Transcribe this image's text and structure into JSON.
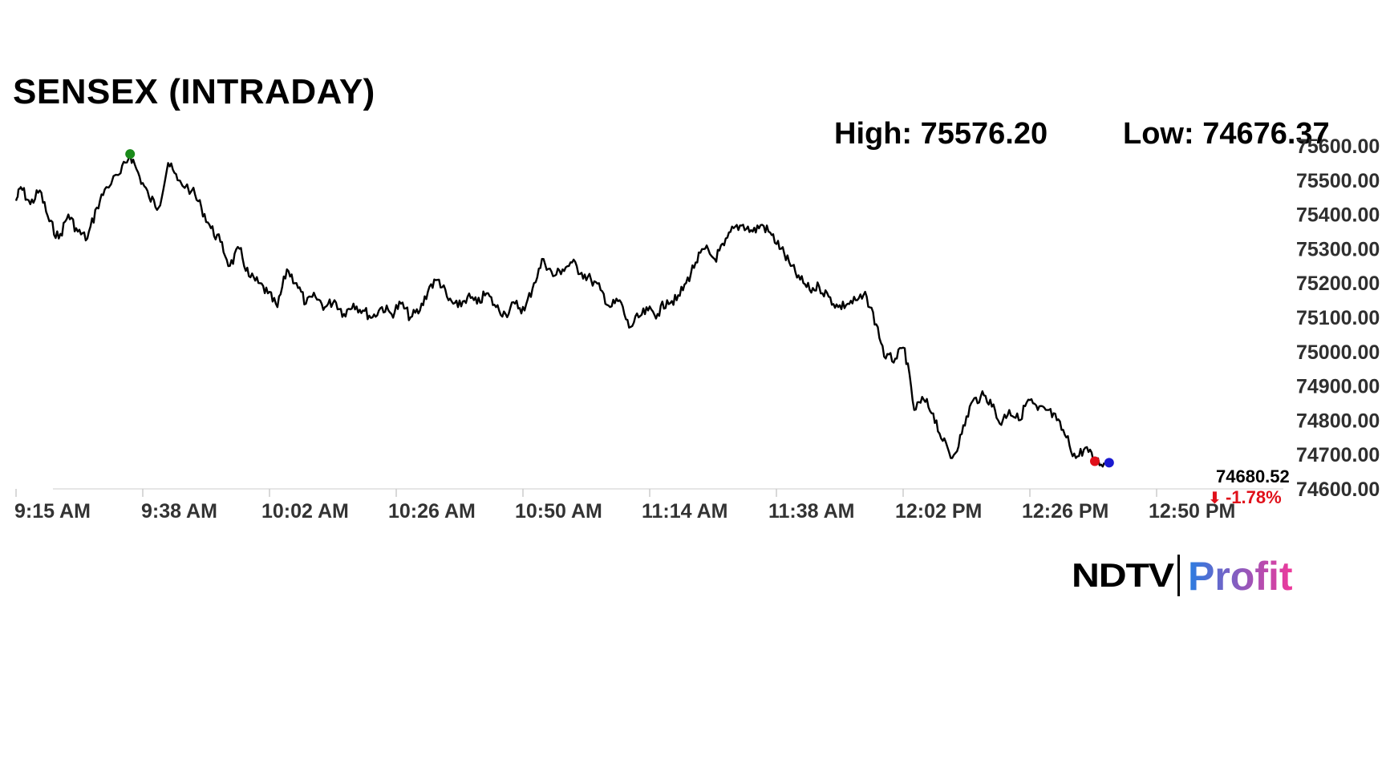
{
  "title": "SENSEX (INTRADAY)",
  "high_label": "High: 75576.20",
  "low_label": "Low: 74676.37",
  "last_value": "74680.52",
  "change_text": "-1.78%",
  "brand": {
    "ndtv": "NDTV",
    "profit": "Profit"
  },
  "colors": {
    "line": "#000000",
    "high_marker": "#1a8a1a",
    "last_marker": "#e0101a",
    "end_marker": "#1a1ad0",
    "change": "#e0101a",
    "profit_start": "#2a7de1",
    "profit_end": "#f0389a"
  },
  "chart_data": {
    "type": "line",
    "title": "SENSEX (INTRADAY)",
    "xlabel": "",
    "ylabel": "",
    "ylim": [
      74600,
      75600
    ],
    "y_ticks": [
      "75600.00",
      "75500.00",
      "75400.00",
      "75300.00",
      "75200.00",
      "75100.00",
      "75000.00",
      "74900.00",
      "74800.00",
      "74700.00",
      "74600.00"
    ],
    "x_ticks": [
      "9:15 AM",
      "9:38 AM",
      "10:02 AM",
      "10:26 AM",
      "10:50 AM",
      "11:14 AM",
      "11:38 AM",
      "12:02 PM",
      "12:26 PM",
      "12:50 PM"
    ],
    "series": [
      {
        "points": [
          [
            "9:15",
            75440
          ],
          [
            "9:16",
            75480
          ],
          [
            "9:18",
            75430
          ],
          [
            "9:20",
            75470
          ],
          [
            "9:22",
            75380
          ],
          [
            "9:24",
            75330
          ],
          [
            "9:26",
            75400
          ],
          [
            "9:28",
            75350
          ],
          [
            "9:30",
            75330
          ],
          [
            "9:32",
            75420
          ],
          [
            "9:34",
            75480
          ],
          [
            "9:37",
            75520
          ],
          [
            "9:39",
            75576.2
          ],
          [
            "9:41",
            75510
          ],
          [
            "9:43",
            75450
          ],
          [
            "9:45",
            75420
          ],
          [
            "9:47",
            75550
          ],
          [
            "9:49",
            75500
          ],
          [
            "9:52",
            75470
          ],
          [
            "9:54",
            75420
          ],
          [
            "9:56",
            75360
          ],
          [
            "9:58",
            75320
          ],
          [
            "10:00",
            75250
          ],
          [
            "10:02",
            75300
          ],
          [
            "10:04",
            75220
          ],
          [
            "10:06",
            75200
          ],
          [
            "10:08",
            75170
          ],
          [
            "10:10",
            75130
          ],
          [
            "10:12",
            75240
          ],
          [
            "10:14",
            75200
          ],
          [
            "10:16",
            75140
          ],
          [
            "10:18",
            75160
          ],
          [
            "10:20",
            75130
          ],
          [
            "10:22",
            75150
          ],
          [
            "10:24",
            75110
          ],
          [
            "10:26",
            75140
          ],
          [
            "10:28",
            75120
          ],
          [
            "10:30",
            75100
          ],
          [
            "10:32",
            75130
          ],
          [
            "10:34",
            75110
          ],
          [
            "10:36",
            75140
          ],
          [
            "10:38",
            75100
          ],
          [
            "10:40",
            75120
          ],
          [
            "10:42",
            75190
          ],
          [
            "10:44",
            75210
          ],
          [
            "10:46",
            75150
          ],
          [
            "10:48",
            75130
          ],
          [
            "10:50",
            75160
          ],
          [
            "10:52",
            75140
          ],
          [
            "10:54",
            75170
          ],
          [
            "10:56",
            75130
          ],
          [
            "10:58",
            75110
          ],
          [
            "11:00",
            75140
          ],
          [
            "11:02",
            75120
          ],
          [
            "11:04",
            75200
          ],
          [
            "11:06",
            75270
          ],
          [
            "11:08",
            75220
          ],
          [
            "11:10",
            75240
          ],
          [
            "11:12",
            75260
          ],
          [
            "11:14",
            75230
          ],
          [
            "11:16",
            75210
          ],
          [
            "11:18",
            75180
          ],
          [
            "11:20",
            75130
          ],
          [
            "11:22",
            75150
          ],
          [
            "11:24",
            75070
          ],
          [
            "11:26",
            75100
          ],
          [
            "11:28",
            75120
          ],
          [
            "11:30",
            75110
          ],
          [
            "11:32",
            75150
          ],
          [
            "11:34",
            75150
          ],
          [
            "11:36",
            75200
          ],
          [
            "11:38",
            75260
          ],
          [
            "11:40",
            75300
          ],
          [
            "11:42",
            75270
          ],
          [
            "11:44",
            75310
          ],
          [
            "11:46",
            75360
          ],
          [
            "11:48",
            75370
          ],
          [
            "11:50",
            75350
          ],
          [
            "11:52",
            75370
          ],
          [
            "11:54",
            75340
          ],
          [
            "11:56",
            75300
          ],
          [
            "11:58",
            75250
          ],
          [
            "12:00",
            75210
          ],
          [
            "12:02",
            75180
          ],
          [
            "12:04",
            75190
          ],
          [
            "12:06",
            75160
          ],
          [
            "12:08",
            75130
          ],
          [
            "12:10",
            75140
          ],
          [
            "12:12",
            75150
          ],
          [
            "12:14",
            75160
          ],
          [
            "12:16",
            75080
          ],
          [
            "12:18",
            74980
          ],
          [
            "12:20",
            74980
          ],
          [
            "12:22",
            75010
          ],
          [
            "12:24",
            74830
          ],
          [
            "12:26",
            74860
          ],
          [
            "12:28",
            74820
          ],
          [
            "12:30",
            74740
          ],
          [
            "12:32",
            74690
          ],
          [
            "12:34",
            74760
          ],
          [
            "12:36",
            74850
          ],
          [
            "12:38",
            74870
          ],
          [
            "12:40",
            74860
          ],
          [
            "12:42",
            74790
          ],
          [
            "12:44",
            74830
          ],
          [
            "12:46",
            74800
          ],
          [
            "12:48",
            74860
          ],
          [
            "12:50",
            74830
          ],
          [
            "12:52",
            74830
          ],
          [
            "12:54",
            74800
          ],
          [
            "12:56",
            74750
          ],
          [
            "12:58",
            74690
          ],
          [
            "13:00",
            74720
          ],
          [
            "13:02",
            74680.52
          ],
          [
            "13:04",
            74676.37
          ]
        ]
      }
    ]
  }
}
